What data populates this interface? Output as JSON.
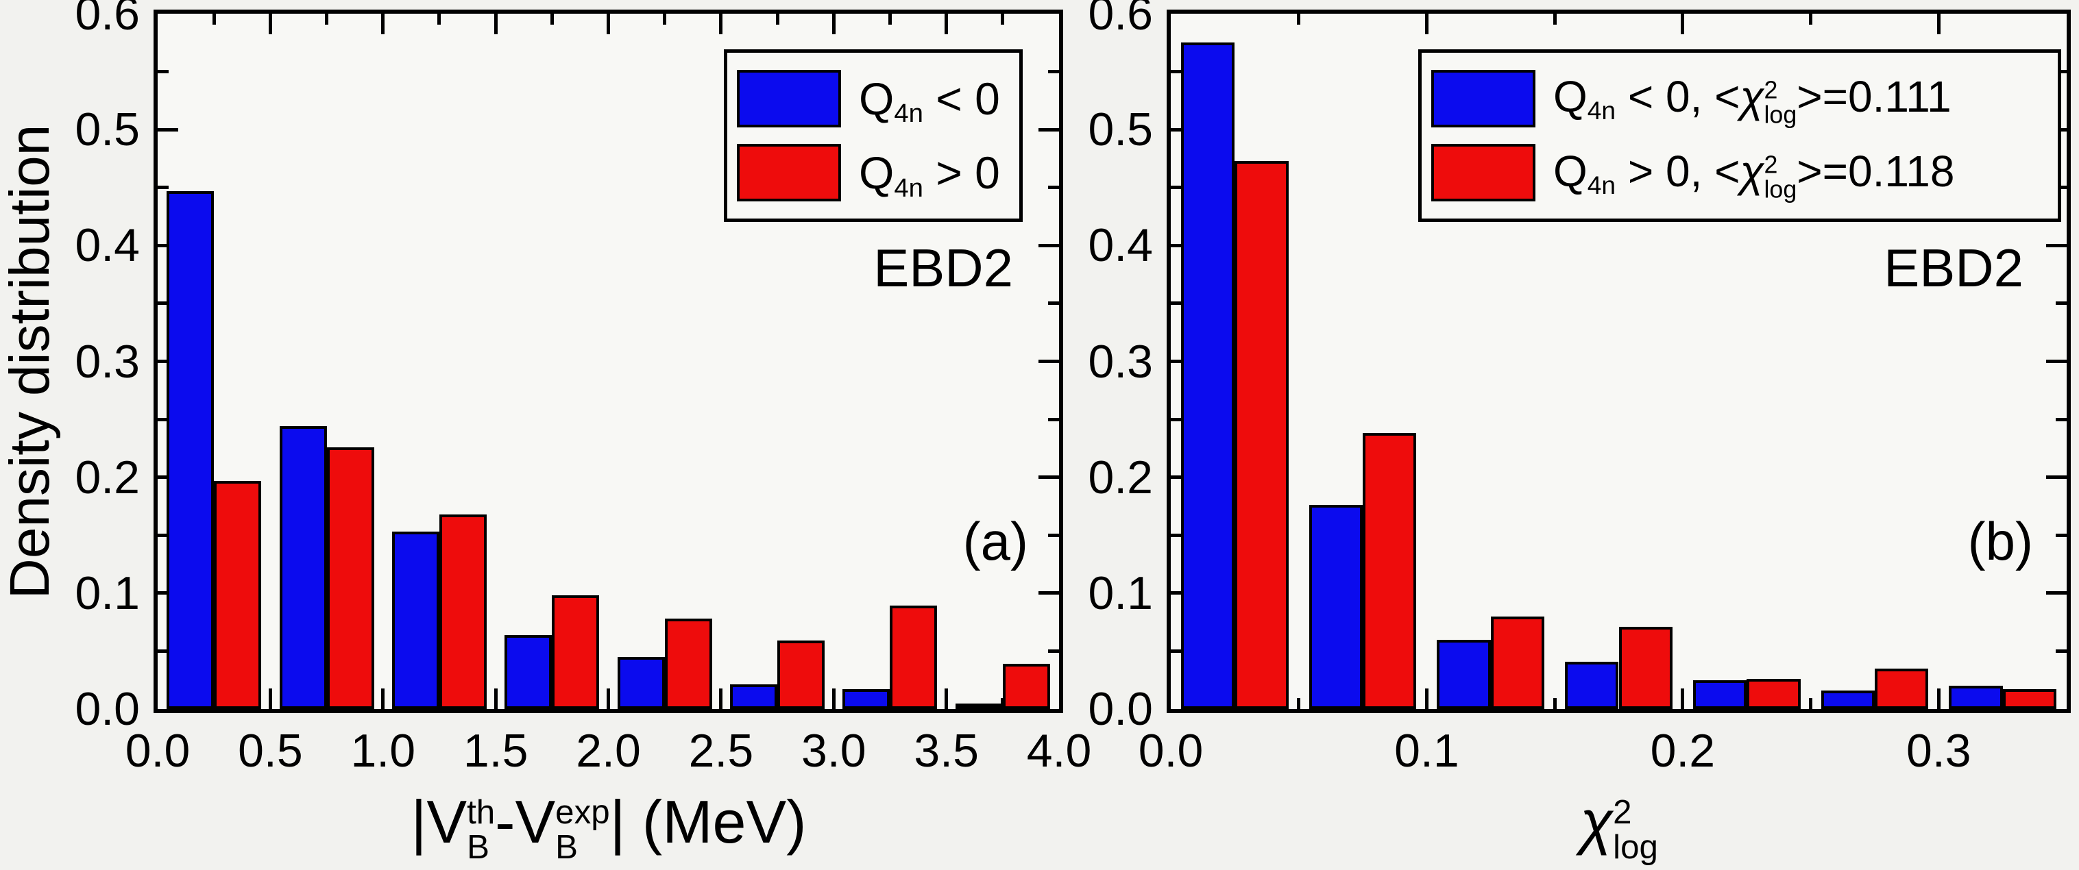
{
  "figure": {
    "background": "#f2f2ef",
    "plot_background": "#f8f8f5",
    "axis_color": "#000000",
    "ylabel": "Density distribution",
    "colors": {
      "blue": "#0b0bee",
      "red": "#ee0c0c"
    }
  },
  "panel_a": {
    "tag": "(a)",
    "model_label": "EBD2",
    "xlabel": {
      "p1": "|V",
      "sup1": "th",
      "sub1": "B",
      "p2": "-V",
      "sup2": "exp",
      "sub2": "B",
      "p3": "| (MeV)"
    },
    "legend": {
      "items": [
        {
          "series": "blue",
          "q": "Q",
          "q_sub": "4n",
          "rest": " < 0"
        },
        {
          "series": "red",
          "q": "Q",
          "q_sub": "4n",
          "rest": " > 0"
        }
      ]
    }
  },
  "panel_b": {
    "tag": "(b)",
    "model_label": "EBD2",
    "xlabel": {
      "chi": "χ",
      "sup": "2",
      "sub": "log"
    },
    "legend": {
      "items": [
        {
          "series": "blue",
          "q": "Q",
          "q_sub": "4n",
          "rest": " < 0, <",
          "chi": "χ",
          "chi_sup": "2",
          "chi_sub": "log",
          "tail": ">=0.111"
        },
        {
          "series": "red",
          "q": "Q",
          "q_sub": "4n",
          "rest": " > 0, <",
          "chi": "χ",
          "chi_sup": "2",
          "chi_sub": "log",
          "tail": ">=0.118"
        }
      ]
    }
  },
  "chart_data": [
    {
      "type": "bar",
      "panel": "a",
      "title": "",
      "xlabel": "|V_B^th - V_B^exp| (MeV)",
      "ylabel": "Density distribution",
      "annotations": [
        "EBD2",
        "(a)"
      ],
      "xlim": [
        0,
        4.0
      ],
      "ylim": [
        0,
        0.6
      ],
      "grid": false,
      "legend_position": "top-right",
      "bin_edges": [
        0,
        0.5,
        1.0,
        1.5,
        2.0,
        2.5,
        3.0,
        3.5,
        4.0
      ],
      "categories": [
        "0.0-0.5",
        "0.5-1.0",
        "1.0-1.5",
        "1.5-2.0",
        "2.0-2.5",
        "2.5-3.0",
        "3.0-3.5",
        "3.5-4.0"
      ],
      "x_major_ticks": [
        0,
        0.5,
        1.0,
        1.5,
        2.0,
        2.5,
        3.0,
        3.5,
        4.0
      ],
      "x_tick_labels": [
        "0.0",
        "0.5",
        "1.0",
        "1.5",
        "2.0",
        "2.5",
        "3.0",
        "3.5",
        "4.0"
      ],
      "x_minor_ticks": [
        0.25,
        0.75,
        1.25,
        1.75,
        2.25,
        2.75,
        3.25,
        3.75
      ],
      "y_major_ticks": [
        0,
        0.1,
        0.2,
        0.3,
        0.4,
        0.5,
        0.6
      ],
      "y_tick_labels": [
        "0.0",
        "0.1",
        "0.2",
        "0.3",
        "0.4",
        "0.5",
        "0.6"
      ],
      "y_minor_ticks": [
        0.05,
        0.15,
        0.25,
        0.35,
        0.45,
        0.55
      ],
      "series": [
        {
          "name": "Q4n < 0",
          "color": "#0b0bee",
          "values": [
            0.447,
            0.244,
            0.153,
            0.064,
            0.045,
            0.021,
            0.017,
            0.003
          ]
        },
        {
          "name": "Q4n > 0",
          "color": "#ee0c0c",
          "values": [
            0.197,
            0.226,
            0.168,
            0.098,
            0.078,
            0.059,
            0.089,
            0.039
          ]
        }
      ]
    },
    {
      "type": "bar",
      "panel": "b",
      "title": "",
      "xlabel": "χ²_log",
      "ylabel": "",
      "annotations": [
        "EBD2",
        "(b)"
      ],
      "xlim": [
        0,
        0.35
      ],
      "ylim": [
        0,
        0.6
      ],
      "grid": false,
      "legend_position": "top-right",
      "bin_edges": [
        0,
        0.05,
        0.1,
        0.15,
        0.2,
        0.25,
        0.3,
        0.35
      ],
      "categories": [
        "0.00-0.05",
        "0.05-0.10",
        "0.10-0.15",
        "0.15-0.20",
        "0.20-0.25",
        "0.25-0.30",
        "0.30-0.35"
      ],
      "x_major_ticks": [
        0,
        0.1,
        0.2,
        0.3
      ],
      "x_tick_labels": [
        "0.0",
        "0.1",
        "0.2",
        "0.3"
      ],
      "x_minor_ticks": [
        0.05,
        0.15,
        0.25
      ],
      "y_major_ticks": [
        0,
        0.1,
        0.2,
        0.3,
        0.4,
        0.5,
        0.6
      ],
      "y_tick_labels": [
        "0.0",
        "0.1",
        "0.2",
        "0.3",
        "0.4",
        "0.5",
        "0.6"
      ],
      "y_minor_ticks": [
        0.05,
        0.15,
        0.25,
        0.35,
        0.45,
        0.55
      ],
      "series": [
        {
          "name": "Q4n < 0, <χ²log>=0.111",
          "color": "#0b0bee",
          "values": [
            0.575,
            0.176,
            0.06,
            0.041,
            0.025,
            0.016,
            0.02
          ]
        },
        {
          "name": "Q4n > 0, <χ²log>=0.118",
          "color": "#ee0c0c",
          "values": [
            0.473,
            0.238,
            0.08,
            0.071,
            0.026,
            0.035,
            0.017
          ]
        }
      ]
    }
  ]
}
